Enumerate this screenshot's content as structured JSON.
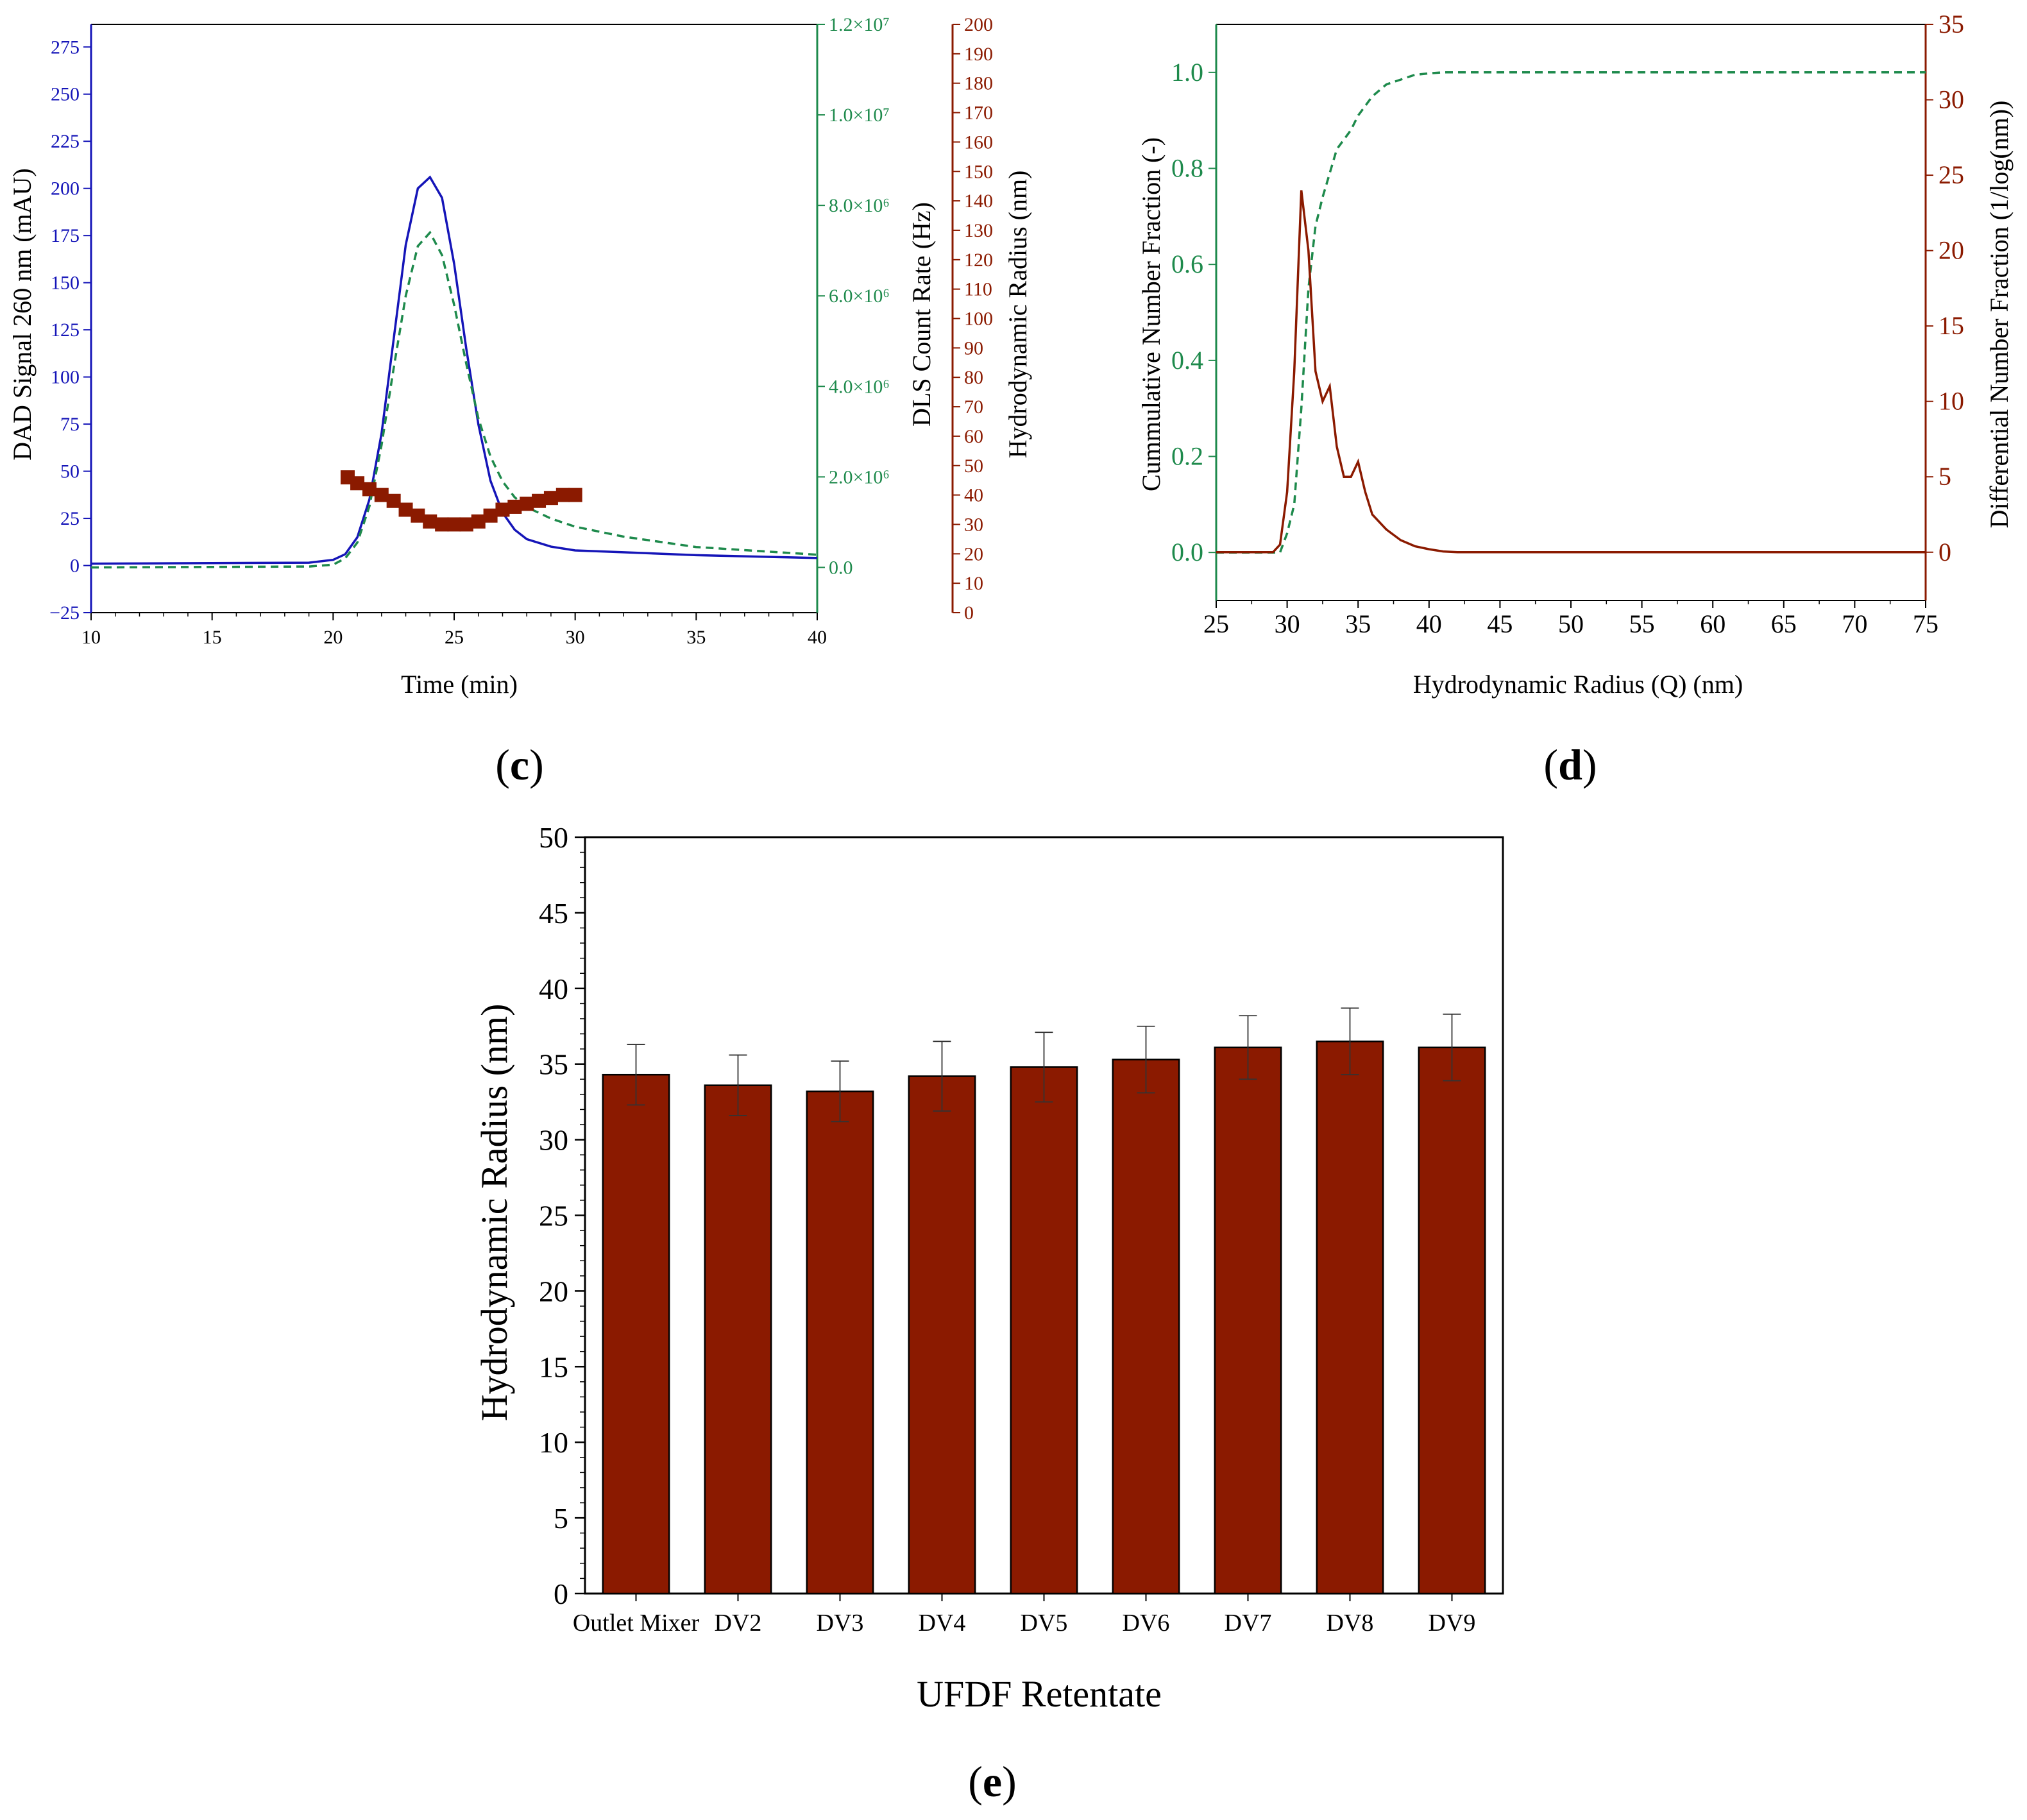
{
  "colors": {
    "blue": "#1515b8",
    "green": "#1e8a4c",
    "darkred": "#8b1a00",
    "black": "#000000"
  },
  "panel_labels": {
    "c": {
      "open": "(",
      "letter": "c",
      "close": ")"
    },
    "d": {
      "open": "(",
      "letter": "d",
      "close": ")"
    },
    "e": {
      "open": "(",
      "letter": "e",
      "close": ")"
    }
  },
  "chart_data": [
    {
      "id": "c",
      "type": "line",
      "xlabel": "Time (min)",
      "xlim": [
        10,
        40
      ],
      "xticks": [
        "10",
        "15",
        "20",
        "25",
        "30",
        "35",
        "40"
      ],
      "y_left": {
        "label": "DAD Signal 260 nm (mAU)",
        "lim": [
          -25,
          287
        ],
        "ticks": [
          "−25",
          "0",
          "25",
          "50",
          "75",
          "100",
          "125",
          "150",
          "175",
          "200",
          "225",
          "250",
          "275"
        ]
      },
      "y_right1": {
        "label": "DLS Count Rate (Hz)",
        "lim": [
          -1000000,
          12000000
        ],
        "ticks": [
          "0.0",
          "2.0×10⁶",
          "4.0×10⁶",
          "6.0×10⁶",
          "8.0×10⁶",
          "1.0×10⁷",
          "1.2×10⁷"
        ],
        "tick_values": [
          0,
          2000000,
          4000000,
          6000000,
          8000000,
          10000000,
          12000000
        ]
      },
      "y_right2": {
        "label": "Hydrodynamic Radius (nm)",
        "lim": [
          0,
          200
        ],
        "ticks": [
          "0",
          "10",
          "20",
          "30",
          "40",
          "50",
          "60",
          "70",
          "80",
          "90",
          "100",
          "110",
          "120",
          "130",
          "140",
          "150",
          "160",
          "170",
          "180",
          "190",
          "200"
        ]
      },
      "series": [
        {
          "name": "DAD Signal 260 nm",
          "axis": "left",
          "style": "solid",
          "x": [
            10,
            19,
            20,
            20.5,
            21,
            21.5,
            22,
            22.5,
            23,
            23.5,
            24,
            24.5,
            25,
            25.5,
            26,
            26.5,
            27,
            27.5,
            28,
            29,
            30,
            32,
            35,
            40
          ],
          "y": [
            1,
            1.5,
            3,
            6,
            15,
            35,
            70,
            120,
            170,
            200,
            206,
            195,
            160,
            115,
            75,
            45,
            28,
            19,
            14,
            10,
            8,
            7,
            5.5,
            4
          ]
        },
        {
          "name": "DLS Count Rate",
          "axis": "right1",
          "style": "dashed",
          "x": [
            10,
            19,
            20,
            20.5,
            21,
            21.5,
            22,
            22.5,
            23,
            23.5,
            24,
            24.5,
            25,
            25.5,
            26,
            26.5,
            27,
            27.5,
            28,
            29,
            30,
            32,
            35,
            40
          ],
          "y": [
            0,
            20000,
            60000,
            200000,
            550000,
            1350000,
            2700000,
            4400000,
            6000000,
            7100000,
            7400000,
            6900000,
            5800000,
            4500000,
            3300000,
            2450000,
            1900000,
            1550000,
            1330000,
            1080000,
            900000,
            680000,
            450000,
            280000
          ]
        },
        {
          "name": "Hydrodynamic Radius",
          "axis": "right2",
          "style": "markers",
          "x": [
            20.6,
            21,
            21.5,
            22,
            22.5,
            23,
            23.5,
            24,
            24.5,
            25,
            25.5,
            26,
            26.5,
            27,
            27.5,
            28,
            28.5,
            29,
            29.5,
            30
          ],
          "y": [
            46,
            44,
            42,
            40,
            38,
            35,
            33,
            31,
            30,
            30,
            30,
            31,
            33,
            35,
            36,
            37,
            38,
            39,
            40,
            40
          ]
        }
      ]
    },
    {
      "id": "d",
      "type": "line",
      "xlabel": "Hydrodynamic Radius (Q) (nm)",
      "xlim": [
        25,
        75
      ],
      "xticks": [
        "25",
        "30",
        "35",
        "40",
        "45",
        "50",
        "55",
        "60",
        "65",
        "70",
        "75"
      ],
      "y_left": {
        "label": "Cummulative Number Fraction (-)",
        "lim": [
          -0.1,
          1.1
        ],
        "ticks": [
          "0.0",
          "0.2",
          "0.4",
          "0.6",
          "0.8",
          "1.0"
        ]
      },
      "y_right": {
        "label": "Differential Number Fraction (1/log(nm))",
        "lim": [
          -3.2,
          35
        ],
        "ticks": [
          "0",
          "5",
          "10",
          "15",
          "20",
          "25",
          "30",
          "35"
        ]
      },
      "series": [
        {
          "name": "Cummulative Number Fraction",
          "axis": "left",
          "style": "dashed",
          "x": [
            25,
            29.5,
            30,
            30.5,
            31,
            31.5,
            32,
            32.5,
            33,
            33.5,
            34,
            34.5,
            35,
            35.5,
            36,
            37,
            38,
            39,
            40,
            41,
            75
          ],
          "y": [
            0,
            0,
            0.04,
            0.1,
            0.3,
            0.55,
            0.68,
            0.74,
            0.79,
            0.84,
            0.86,
            0.88,
            0.91,
            0.93,
            0.95,
            0.975,
            0.985,
            0.995,
            0.998,
            1.0,
            1.0
          ]
        },
        {
          "name": "Differential Number Fraction",
          "axis": "right",
          "style": "solid",
          "x": [
            25,
            29,
            29.5,
            30,
            30.5,
            31,
            31.5,
            32,
            32.5,
            33,
            33.5,
            34,
            34.5,
            35,
            35.5,
            36,
            37,
            38,
            39,
            40,
            41,
            42,
            75
          ],
          "y": [
            0,
            0,
            0.5,
            4,
            12,
            24,
            20,
            12,
            10,
            11,
            7,
            5,
            5,
            6,
            4,
            2.5,
            1.5,
            0.8,
            0.4,
            0.2,
            0.05,
            0,
            0
          ]
        }
      ]
    },
    {
      "id": "e",
      "type": "bar",
      "title": "",
      "xlabel": "UFDF Retentate",
      "ylabel": "Hydrodynamic Radius (nm)",
      "ylim": [
        0,
        50
      ],
      "yticks": [
        "0",
        "5",
        "10",
        "15",
        "20",
        "25",
        "30",
        "35",
        "40",
        "45",
        "50"
      ],
      "categories": [
        "Outlet Mixer",
        "DV2",
        "DV3",
        "DV4",
        "DV5",
        "DV6",
        "DV7",
        "DV8",
        "DV9"
      ],
      "values": [
        34.3,
        33.6,
        33.2,
        34.2,
        34.8,
        35.3,
        36.1,
        36.5,
        36.1
      ],
      "errors": [
        2.0,
        2.0,
        2.0,
        2.3,
        2.3,
        2.2,
        2.1,
        2.2,
        2.2
      ]
    }
  ]
}
